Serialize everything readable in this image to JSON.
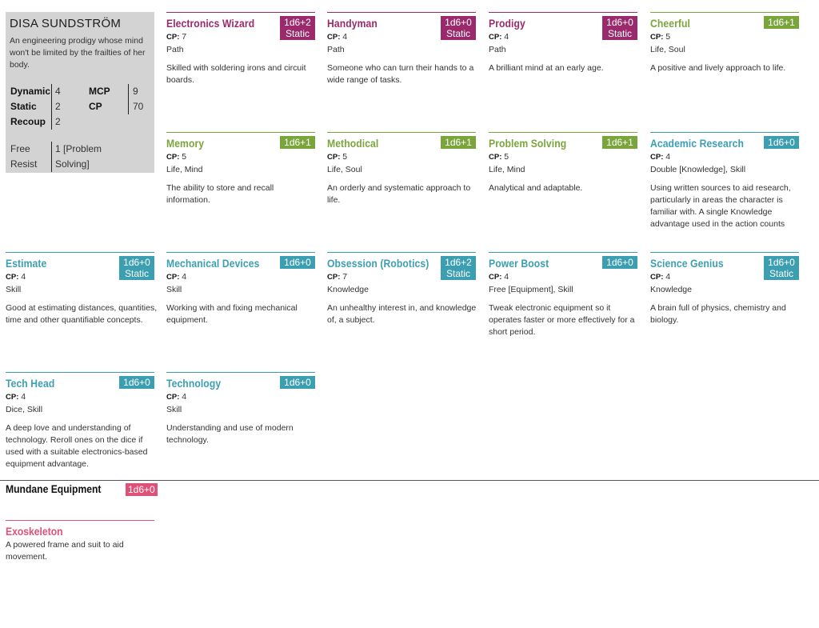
{
  "profile": {
    "name": "DISA SUNDSTRÖM",
    "description": "An engineering prodigy whose mind won't be limited by the frailties of her body.",
    "stats": {
      "dynamic_label": "Dynamic",
      "dynamic": "4",
      "static_label": "Static",
      "static": "2",
      "recoup_label": "Recoup",
      "recoup": "2",
      "mcp_label": "MCP",
      "mcp": "9",
      "cp_label": "CP",
      "cp": "70",
      "free_label": "Free",
      "resist_label": "Resist",
      "free_value_1": "1 [Problem",
      "free_value_2": "Solving]"
    }
  },
  "colors": {
    "path": "#9b2a6d",
    "life": "#7aa53a",
    "skill": "#3b9fb1",
    "equipment": "#e05177"
  },
  "cp_label": "CP:",
  "cards": [
    {
      "title": "Electronics Wizard",
      "badge1": "1d6+2",
      "badge2": "Static",
      "cp": "7",
      "tags": "Path",
      "text": "Skilled with soldering irons and circuit boards.",
      "color": "#9b2a6d"
    },
    {
      "title": "Handyman",
      "badge1": "1d6+0",
      "badge2": "Static",
      "cp": "4",
      "tags": "Path",
      "text": "Someone who can turn their hands to a wide range of tasks.",
      "color": "#9b2a6d"
    },
    {
      "title": "Prodigy",
      "badge1": "1d6+0",
      "badge2": "Static",
      "cp": "4",
      "tags": "Path",
      "text": "A brilliant mind at an early age.",
      "color": "#9b2a6d"
    },
    {
      "title": "Cheerful",
      "badge1": "1d6+1",
      "badge2": "",
      "cp": "5",
      "tags": "Life, Soul",
      "text": "A positive and lively approach to life.",
      "color": "#7aa53a"
    },
    {
      "title": "Memory",
      "badge1": "1d6+1",
      "badge2": "",
      "cp": "5",
      "tags": "Life, Mind",
      "text": "The ability to store and recall information.",
      "color": "#7aa53a"
    },
    {
      "title": "Methodical",
      "badge1": "1d6+1",
      "badge2": "",
      "cp": "5",
      "tags": "Life, Soul",
      "text": "An orderly and systematic approach to life.",
      "color": "#7aa53a"
    },
    {
      "title": "Problem Solving",
      "badge1": "1d6+1",
      "badge2": "",
      "cp": "5",
      "tags": "Life, Mind",
      "text": "Analytical and adaptable.",
      "color": "#7aa53a"
    },
    {
      "title": "Academic Research",
      "badge1": "1d6+0",
      "badge2": "",
      "cp": "4",
      "tags": "Double [Knowledge], Skill",
      "text": "Using written sources to aid research, particularly in areas the character is familiar with. A single Knowledge advantage used in the action counts",
      "color": "#3b9fb1"
    },
    {
      "title": "Estimate",
      "badge1": "1d6+0",
      "badge2": "Static",
      "cp": "4",
      "tags": "Skill",
      "text": "Good at estimating distances, quantities, time and other quantifiable concepts.",
      "color": "#3b9fb1"
    },
    {
      "title": "Mechanical Devices",
      "badge1": "1d6+0",
      "badge2": "",
      "cp": "4",
      "tags": "Skill",
      "text": "Working with and fixing mechanical equipment.",
      "color": "#3b9fb1"
    },
    {
      "title": "Obsession (Robotics)",
      "badge1": "1d6+2",
      "badge2": "Static",
      "cp": "7",
      "tags": "Knowledge",
      "text": "An unhealthy interest in, and knowledge of, a subject.",
      "color": "#3b9fb1"
    },
    {
      "title": "Power Boost",
      "badge1": "1d6+0",
      "badge2": "",
      "cp": "4",
      "tags": "Free [Equipment], Skill",
      "text": "Tweak electronic equipment so it operates faster or more effectively for a short period.",
      "color": "#3b9fb1"
    },
    {
      "title": "Science Genius",
      "badge1": "1d6+0",
      "badge2": "Static",
      "cp": "4",
      "tags": "Knowledge",
      "text": "A brain full of physics, chemistry and biology.",
      "color": "#3b9fb1"
    },
    {
      "title": "Tech Head",
      "badge1": "1d6+0",
      "badge2": "",
      "cp": "4",
      "tags": "Dice, Skill",
      "text": "A deep love and understanding of technology. Reroll ones on the dice if used with a suitable electronics-based equipment advantage.",
      "color": "#3b9fb1"
    },
    {
      "title": "Technology",
      "badge1": "1d6+0",
      "badge2": "",
      "cp": "4",
      "tags": "Skill",
      "text": "Understanding and use of modern technology.",
      "color": "#3b9fb1"
    }
  ],
  "equipment": {
    "section_title": "Mundane Equipment",
    "badge": "1d6+0",
    "item_title": "Exoskeleton",
    "item_text": "A powered frame and suit to aid movement."
  }
}
